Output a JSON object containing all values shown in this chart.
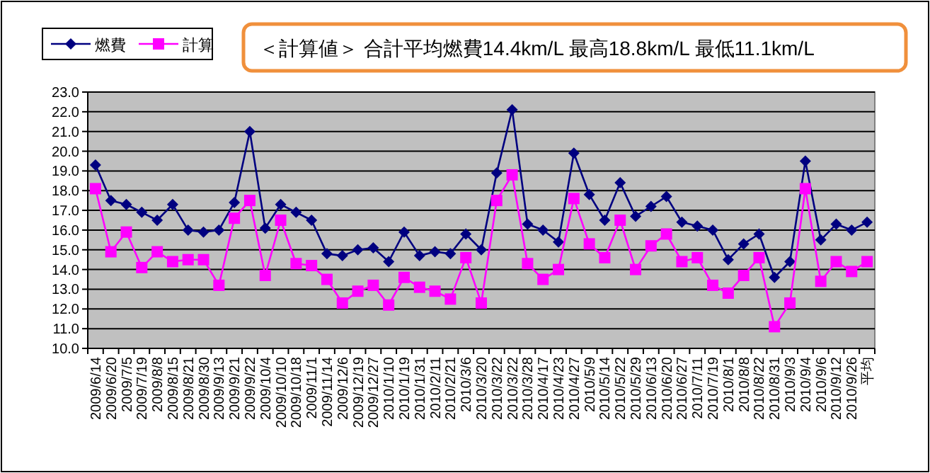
{
  "chart_data": {
    "type": "line",
    "title": "＜計算値＞ 合計平均燃費14.4km/L 最高18.8km/L 最低11.1km/L",
    "categories": [
      "2009/6/14",
      "2009/6/20",
      "2009/7/5",
      "2009/7/19",
      "2009/8/8",
      "2009/8/15",
      "2009/8/21",
      "2009/8/30",
      "2009/9/13",
      "2009/9/21",
      "2009/9/22",
      "2009/10/4",
      "2009/10/10",
      "2009/10/18",
      "2009/11/1",
      "2009/11/14",
      "2009/12/6",
      "2009/12/19",
      "2009/12/27",
      "2010/1/10",
      "2010/1/19",
      "2010/1/31",
      "2010/2/11",
      "2010/2/21",
      "2010/3/6",
      "2010/3/20",
      "2010/3/22",
      "2010/3/22",
      "2010/3/28",
      "2010/4/17",
      "2010/4/23",
      "2010/4/27",
      "2010/5/9",
      "2010/5/14",
      "2010/5/22",
      "2010/5/29",
      "2010/6/13",
      "2010/6/20",
      "2010/6/27",
      "2010/7/11",
      "2010/7/19",
      "2010/8/1",
      "2010/8/8",
      "2010/8/22",
      "2010/8/31",
      "2010/9/3",
      "2010/9/4",
      "2010/9/6",
      "2010/9/12",
      "2010/9/26",
      "平均"
    ],
    "series": [
      {
        "name": "燃費",
        "color": "#000080",
        "marker": "diamond",
        "values": [
          19.3,
          17.5,
          17.3,
          16.9,
          16.5,
          17.3,
          16.0,
          15.9,
          16.0,
          17.4,
          21.0,
          16.1,
          17.3,
          16.9,
          16.5,
          14.8,
          14.7,
          15.0,
          15.1,
          14.4,
          15.9,
          14.7,
          14.9,
          14.8,
          15.8,
          15.0,
          18.9,
          22.1,
          16.3,
          16.0,
          15.4,
          19.9,
          17.8,
          16.5,
          18.4,
          16.7,
          17.2,
          17.7,
          16.4,
          16.2,
          16.0,
          14.5,
          15.3,
          15.8,
          13.6,
          14.4,
          19.5,
          15.5,
          16.3,
          16.0,
          16.4
        ]
      },
      {
        "name": "計算",
        "color": "#ff00ff",
        "marker": "square",
        "values": [
          18.1,
          14.9,
          15.9,
          14.1,
          14.9,
          14.4,
          14.5,
          14.5,
          13.2,
          16.6,
          17.5,
          13.7,
          16.5,
          14.3,
          14.2,
          13.5,
          12.3,
          12.9,
          13.2,
          12.2,
          13.6,
          13.1,
          12.9,
          12.5,
          14.6,
          12.3,
          17.5,
          18.8,
          14.3,
          13.5,
          14.0,
          17.6,
          15.3,
          14.6,
          16.5,
          14.0,
          15.2,
          15.8,
          14.4,
          14.6,
          13.2,
          12.8,
          13.7,
          14.6,
          11.1,
          12.3,
          18.1,
          13.4,
          14.4,
          13.9,
          14.4
        ]
      }
    ],
    "ylim": [
      10,
      23
    ],
    "yticks": [
      {
        "value": 10,
        "label": "10.0"
      },
      {
        "value": 11,
        "label": "11.0"
      },
      {
        "value": 12,
        "label": "12.0"
      },
      {
        "value": 13,
        "label": "13.0"
      },
      {
        "value": 14,
        "label": "14.0"
      },
      {
        "value": 15,
        "label": "15.0"
      },
      {
        "value": 16,
        "label": "16.0"
      },
      {
        "value": 17,
        "label": "17.0"
      },
      {
        "value": 18,
        "label": "18.0"
      },
      {
        "value": 19,
        "label": "19.0"
      },
      {
        "value": 20,
        "label": "20.0"
      },
      {
        "value": 21,
        "label": "21.0"
      },
      {
        "value": 22,
        "label": "22.0"
      },
      {
        "value": 23,
        "label": "23.0"
      }
    ],
    "grid": "y",
    "legend": "top left",
    "line_style": "solid"
  }
}
